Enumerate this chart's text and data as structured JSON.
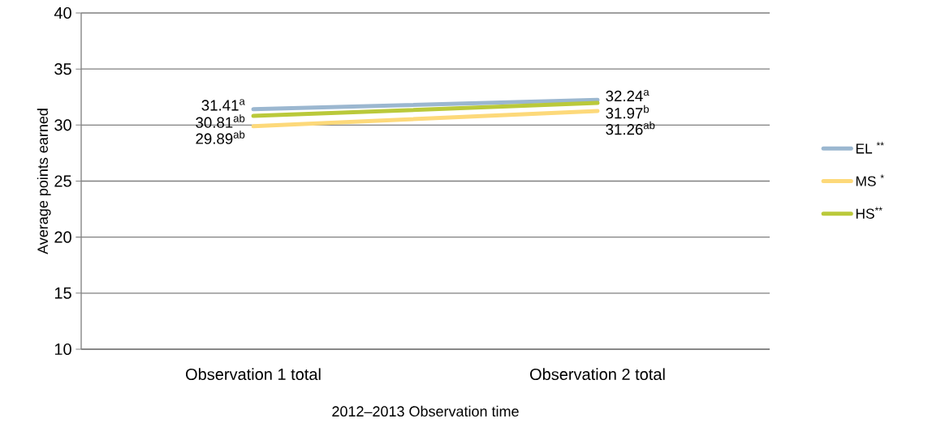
{
  "chart_data": {
    "type": "line",
    "xlabel": "2012–2013 Observation time",
    "ylabel": "Average points earned",
    "categories": [
      "Observation 1 total",
      "Observation 2 total"
    ],
    "series": [
      {
        "name": "EL $^{**}$",
        "color": "#9bb7d0",
        "values": [
          31.41,
          32.24
        ],
        "value_labels": [
          "31.41$^{a}$",
          "32.24$^{a}$"
        ]
      },
      {
        "name": "MS $^{*}$",
        "color": "#fdd97a",
        "values": [
          29.89,
          31.26
        ],
        "value_labels": [
          "29.89$^{ab}$",
          "31.26$^{ab}$"
        ]
      },
      {
        "name": "HS$^{**}$",
        "color": "#bac93a",
        "values": [
          30.81,
          31.97
        ],
        "value_labels": [
          "30.81$^{ab}$",
          "31.97$^{b}$"
        ]
      }
    ],
    "ylim": [
      10,
      40
    ],
    "yticks": [
      10,
      15,
      20,
      25,
      30,
      35,
      40
    ],
    "grid": "y",
    "legend": "right",
    "marker": "none",
    "line_style": "solid"
  }
}
